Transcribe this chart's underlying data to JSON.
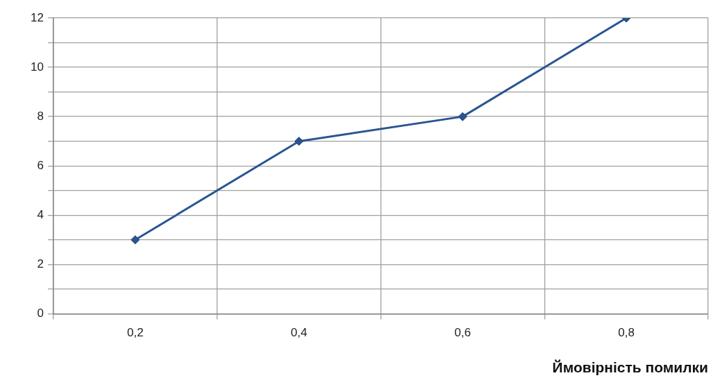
{
  "chart_data": {
    "type": "line",
    "xlabel": "Ймовірність помилки",
    "categories": [
      "0,2",
      "0,4",
      "0,6",
      "0,8"
    ],
    "series": [
      {
        "color": "#2a5592",
        "values": [
          3,
          7,
          8,
          12
        ]
      }
    ],
    "ylim": [
      0,
      12
    ],
    "yticks": [
      0,
      {
        "value": 1,
        "label": null
      },
      2,
      {
        "value": 3,
        "label": null
      },
      4,
      {
        "value": 5,
        "label": null
      },
      6,
      {
        "value": 7,
        "label": null
      },
      8,
      {
        "value": 9,
        "label": null
      },
      10,
      {
        "value": 11,
        "label": null
      },
      12
    ],
    "grid": true,
    "marker": "diamond",
    "line_style": "solid",
    "legend": false
  }
}
